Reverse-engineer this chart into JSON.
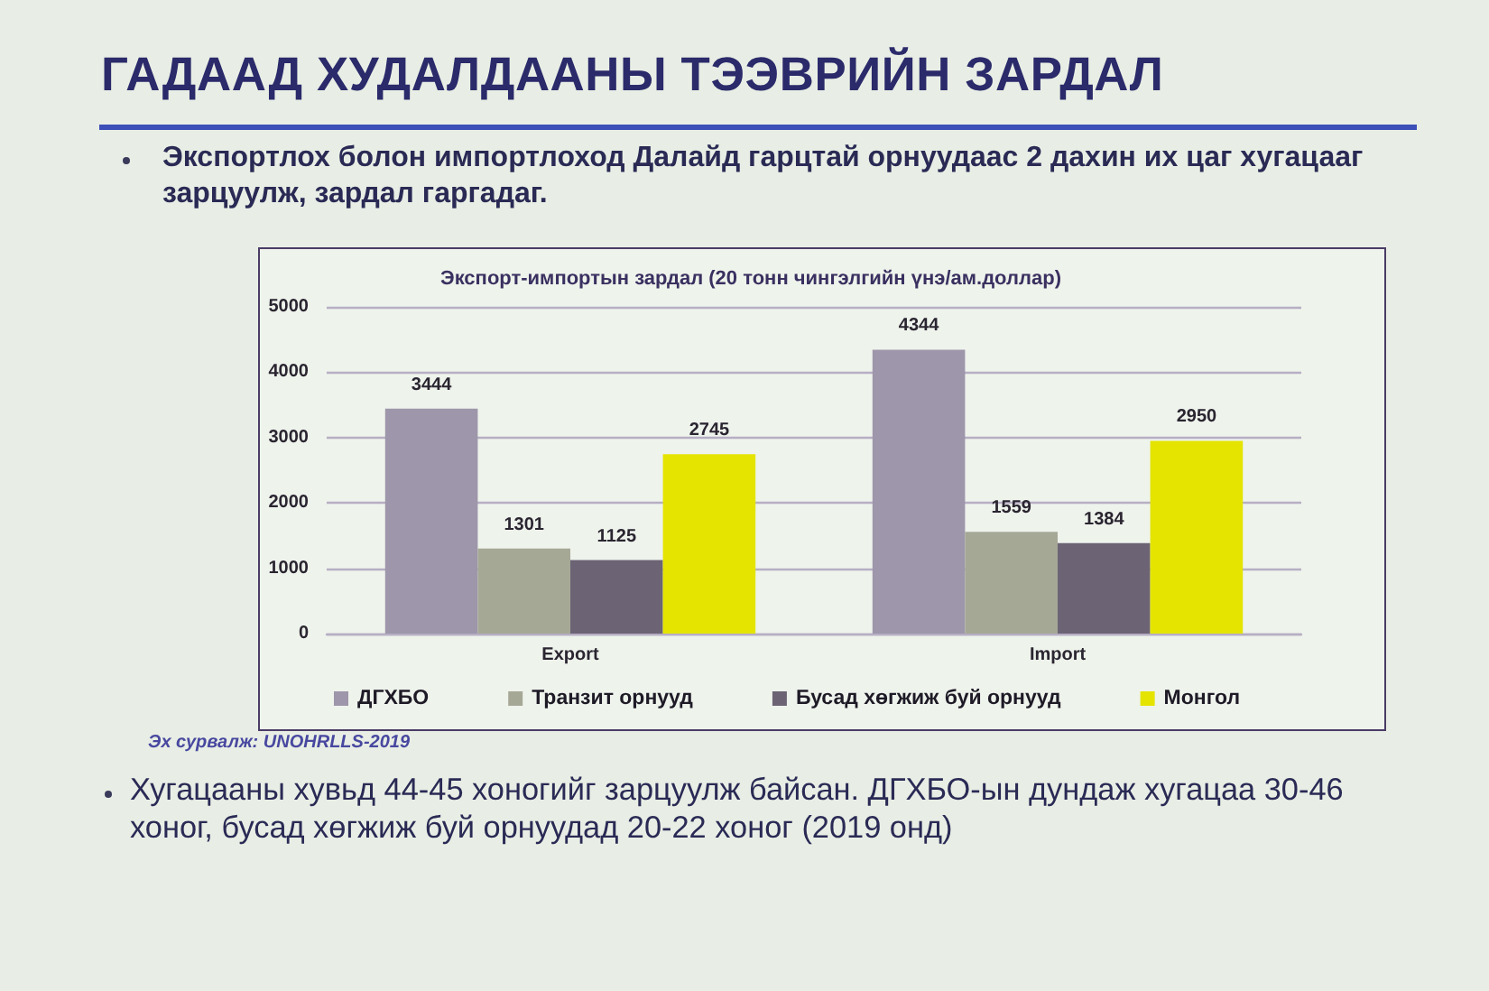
{
  "chart_data": {
    "type": "bar",
    "title": "ГАДААД ХУДАЛДААНЫ ТЭЭВРИЙН ЗАРДАЛ",
    "subtitle": "Экспорт-импортын зардал (20 тонн чингэлгийн үнэ/ам.доллар)",
    "categories": [
      "Export",
      "Import"
    ],
    "series": [
      {
        "name": "ДГХБО",
        "color": "#9e96aa",
        "values": [
          3444,
          4344
        ]
      },
      {
        "name": "Транзит орнууд",
        "color": "#a6a896",
        "values": [
          1301,
          1559
        ]
      },
      {
        "name": "Бусад хөгжиж буй орнууд",
        "color": "#6c6474",
        "values": [
          1125,
          1384
        ]
      },
      {
        "name": "Монгол",
        "color": "#e4e400",
        "values": [
          2745,
          2950
        ]
      }
    ],
    "ylim": [
      0,
      5000
    ],
    "yticks": [
      0,
      1000,
      2000,
      3000,
      4000,
      5000
    ],
    "grid": "y",
    "legend": "bottom",
    "data_labels": true,
    "annotations": [
      "Экспортлох болон импортлоход Далайд гарцтай орнуудаас 2 дахин их цаг хугацааг зарцуулж, зардал гаргадаг.",
      "Эх сурвалж: UNOHRLLS-2019",
      "Хугацааны хувьд 44-45 хоногийг зарцуулж байсан. ДГХБО-ын дундаж хугацаа 30-46 хоног, бусад хөгжиж буй орнуудад 20-22 хоног (2019 онд)"
    ]
  }
}
